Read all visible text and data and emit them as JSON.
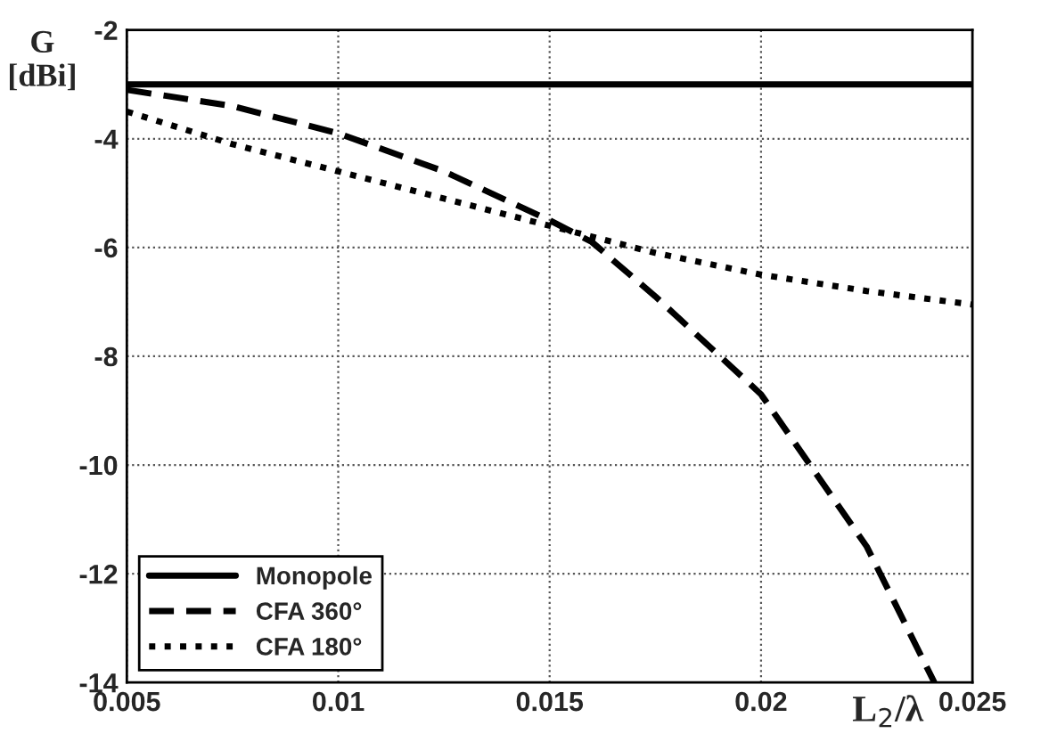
{
  "chart_data": {
    "type": "line",
    "xlabel": "L$_{2}$/λ",
    "ylabel": "G\n[dBi]",
    "xlim": [
      0.005,
      0.025
    ],
    "xticks": [
      0.005,
      0.01,
      0.015,
      0.02,
      0.025
    ],
    "ylim": [
      -14,
      -2
    ],
    "yticks": [
      -14,
      -12,
      -10,
      -8,
      -6,
      -4,
      -2
    ],
    "grid": true,
    "legend": "bottom left",
    "series": [
      {
        "name": "Monopole",
        "color": "#000000",
        "line_style": "solid",
        "x": [
          0.005,
          0.025
        ],
        "values": [
          -3,
          -3
        ]
      },
      {
        "name": "CFA 360°",
        "color": "#000000",
        "line_style": "dashed",
        "x": [
          0.005,
          0.0075,
          0.01,
          0.0125,
          0.015,
          0.016,
          0.0175,
          0.02,
          0.0225,
          0.0241
        ],
        "values": [
          -3.1,
          -3.4,
          -3.9,
          -4.6,
          -5.5,
          -5.9,
          -6.9,
          -8.7,
          -11.5,
          -14
        ]
      },
      {
        "name": "CFA 180°",
        "color": "#000000",
        "line_style": "dotted",
        "x": [
          0.005,
          0.0075,
          0.01,
          0.0125,
          0.015,
          0.0175,
          0.02,
          0.0225,
          0.025
        ],
        "values": [
          -3.5,
          -4.1,
          -4.6,
          -5.1,
          -5.6,
          -6.1,
          -6.5,
          -6.8,
          -7.05
        ]
      }
    ]
  }
}
